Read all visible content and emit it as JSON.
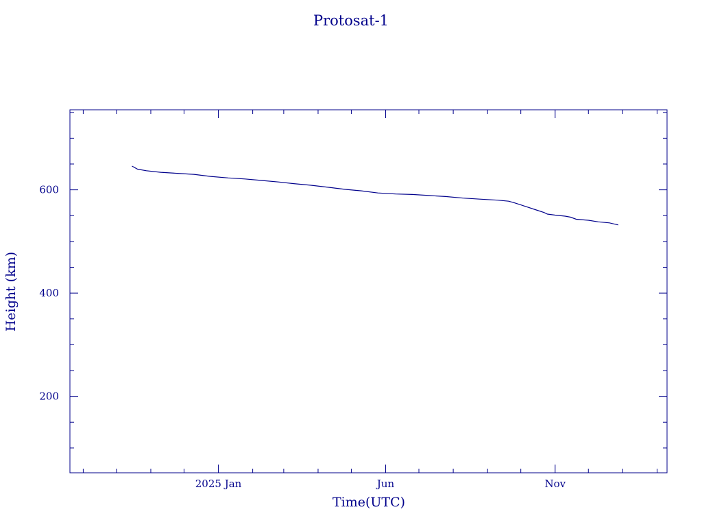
{
  "colors": {
    "ink": "#00008b",
    "background": "#ffffff"
  },
  "chart_data": {
    "type": "line",
    "title": "Protosat-1",
    "xlabel": "Time(UTC)",
    "ylabel": "Height (km)",
    "grid": false,
    "legend": "none",
    "x_axis": {
      "type": "date",
      "range": [
        "2024-08-20",
        "2026-02-10"
      ],
      "ticks": [
        {
          "date": "2025-01-01",
          "label": "2025 Jan"
        },
        {
          "date": "2025-06-01",
          "label": "Jun"
        },
        {
          "date": "2025-11-01",
          "label": "Nov"
        }
      ]
    },
    "y_axis": {
      "range": [
        52,
        755
      ],
      "ticks": [
        200,
        400,
        600
      ],
      "minor_step": 50
    },
    "series": [
      {
        "x": [
          "2024-10-15",
          "2024-10-20",
          "2024-10-28",
          "2024-11-10",
          "2024-11-25",
          "2024-12-10",
          "2024-12-25",
          "2025-01-10",
          "2025-01-25",
          "2025-02-10",
          "2025-02-25",
          "2025-03-10",
          "2025-03-25",
          "2025-04-10",
          "2025-04-25",
          "2025-05-10",
          "2025-05-25",
          "2025-06-10",
          "2025-06-25",
          "2025-07-10",
          "2025-07-25",
          "2025-08-10",
          "2025-08-25",
          "2025-09-10",
          "2025-09-20",
          "2025-09-25",
          "2025-10-05",
          "2025-10-15",
          "2025-10-22",
          "2025-10-25",
          "2025-11-01",
          "2025-11-10",
          "2025-11-15",
          "2025-11-20",
          "2025-12-01",
          "2025-12-10",
          "2025-12-20",
          "2025-12-28"
        ],
        "values": [
          646,
          640,
          637,
          634,
          632,
          630,
          626,
          623,
          621,
          618,
          615,
          612,
          609,
          605,
          601,
          598,
          594,
          592,
          591,
          589,
          587,
          584,
          582,
          580,
          578,
          575,
          568,
          561,
          556,
          553,
          551,
          549,
          547,
          543,
          541,
          538,
          536,
          532
        ]
      }
    ]
  }
}
